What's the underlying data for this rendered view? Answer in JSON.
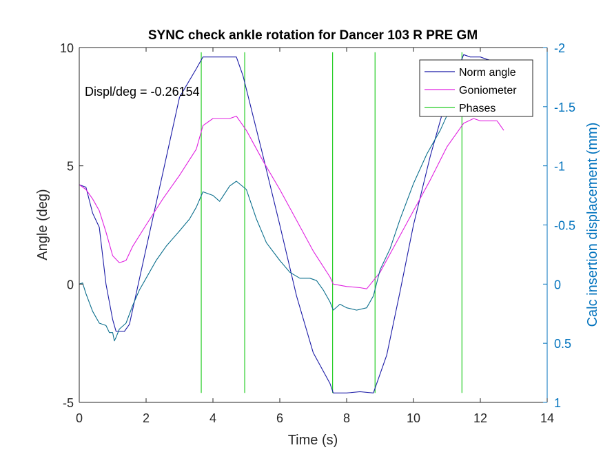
{
  "chart_data": {
    "type": "line",
    "title": "SYNC check ankle rotation for Dancer 103 R PRE GM",
    "xlabel": "Time (s)",
    "ylabel": "Angle (deg)",
    "ylabel_right": "Calc insertion displacement (mm)",
    "xlim": [
      0,
      14
    ],
    "ylim": [
      -5,
      10
    ],
    "ylim_right": [
      1,
      -2
    ],
    "y_right_reversed": true,
    "xticks": [
      0,
      2,
      4,
      6,
      8,
      10,
      12,
      14
    ],
    "yticks": [
      -5,
      0,
      5,
      10
    ],
    "yticks_right": [
      -2,
      -1.5,
      -1,
      -0.5,
      0,
      0.5,
      1
    ],
    "xtick_labels": [
      "0",
      "2",
      "4",
      "6",
      "8",
      "10",
      "12",
      "14"
    ],
    "ytick_labels": [
      "-5",
      "0",
      "5",
      "10"
    ],
    "ytick_right_labels": [
      "-2",
      "-1.5",
      "-1",
      "-0.5",
      "0",
      "0.5",
      "1"
    ],
    "grid": false,
    "legend_position": "top-right",
    "annotation": "Displ/deg = -0.26154",
    "series": [
      {
        "name": "Norm angle",
        "axis": "left",
        "color": "#1a1aa6",
        "x": [
          0,
          0.2,
          0.4,
          0.6,
          0.8,
          1.0,
          1.1,
          1.2,
          1.35,
          1.5,
          2.0,
          2.5,
          3.0,
          3.5,
          3.7,
          4.0,
          4.4,
          4.7,
          4.9,
          5.5,
          6.0,
          6.5,
          7.0,
          7.5,
          7.6,
          8.0,
          8.4,
          8.8,
          9.2,
          9.6,
          10.0,
          10.5,
          11.0,
          11.5,
          11.7,
          12.0,
          12.2,
          12.5
        ],
        "y": [
          4.2,
          4.1,
          3.0,
          2.4,
          0.0,
          -1.5,
          -2.0,
          -2.0,
          -2.0,
          -1.7,
          1.5,
          4.7,
          7.9,
          9.1,
          9.6,
          9.6,
          9.6,
          9.6,
          8.8,
          5.4,
          2.5,
          -0.5,
          -2.9,
          -4.2,
          -4.6,
          -4.6,
          -4.55,
          -4.6,
          -3.0,
          -0.3,
          2.5,
          5.4,
          7.9,
          9.7,
          9.6,
          9.6,
          9.5,
          9.4
        ]
      },
      {
        "name": "Goniometer",
        "axis": "left",
        "color": "#e020e0",
        "x": [
          0,
          0.2,
          0.4,
          0.6,
          0.8,
          1.0,
          1.2,
          1.4,
          1.6,
          2.0,
          2.5,
          3.0,
          3.5,
          3.7,
          4.0,
          4.2,
          4.5,
          4.7,
          5.0,
          5.5,
          6.0,
          6.5,
          7.0,
          7.5,
          7.6,
          8.0,
          8.4,
          8.6,
          9.0,
          9.5,
          10.0,
          10.5,
          11.0,
          11.5,
          11.8,
          12.0,
          12.5,
          12.7
        ],
        "y": [
          4.2,
          4.0,
          3.6,
          3.1,
          2.2,
          1.2,
          0.9,
          1.0,
          1.6,
          2.5,
          3.6,
          4.6,
          5.7,
          6.7,
          7.0,
          7.0,
          7.0,
          7.1,
          6.5,
          5.2,
          4.0,
          2.7,
          1.4,
          0.3,
          0.0,
          -0.1,
          -0.15,
          -0.2,
          0.5,
          1.8,
          3.1,
          4.4,
          5.8,
          6.8,
          7.0,
          6.9,
          6.9,
          6.5
        ]
      },
      {
        "name": "Calc insertion displacement",
        "axis": "right",
        "color": "#0a6e8c",
        "x": [
          0,
          0.1,
          0.2,
          0.4,
          0.6,
          0.8,
          0.9,
          1.0,
          1.05,
          1.1,
          1.2,
          1.4,
          1.6,
          1.8,
          2.0,
          2.3,
          2.6,
          3.0,
          3.3,
          3.5,
          3.7,
          4.0,
          4.2,
          4.5,
          4.7,
          5.0,
          5.3,
          5.6,
          6.0,
          6.3,
          6.6,
          6.9,
          7.1,
          7.3,
          7.5,
          7.6,
          7.8,
          8.0,
          8.3,
          8.6,
          8.8,
          9.0,
          9.3,
          9.6,
          10.0,
          10.4,
          10.8,
          11.2,
          11.5,
          11.7
        ],
        "y": [
          0.0,
          -0.01,
          0.08,
          0.23,
          0.33,
          0.35,
          0.41,
          0.41,
          0.48,
          0.45,
          0.38,
          0.33,
          0.18,
          0.05,
          -0.05,
          -0.2,
          -0.32,
          -0.45,
          -0.55,
          -0.65,
          -0.78,
          -0.75,
          -0.7,
          -0.83,
          -0.87,
          -0.8,
          -0.55,
          -0.35,
          -0.2,
          -0.1,
          -0.05,
          -0.05,
          -0.03,
          0.05,
          0.15,
          0.22,
          0.17,
          0.2,
          0.22,
          0.2,
          0.1,
          -0.12,
          -0.3,
          -0.55,
          -0.85,
          -1.1,
          -1.3,
          -1.55,
          -1.73,
          -1.85
        ]
      }
    ],
    "phases": {
      "name": "Phases",
      "color": "#22cc22",
      "x": [
        3.65,
        4.95,
        7.58,
        8.85,
        11.45
      ],
      "y_range": [
        -4.6,
        9.8
      ]
    },
    "legend": [
      {
        "label": "Norm angle",
        "color": "#1a1aa6"
      },
      {
        "label": "Goniometer",
        "color": "#e020e0"
      },
      {
        "label": "Phases",
        "color": "#22cc22"
      }
    ]
  }
}
